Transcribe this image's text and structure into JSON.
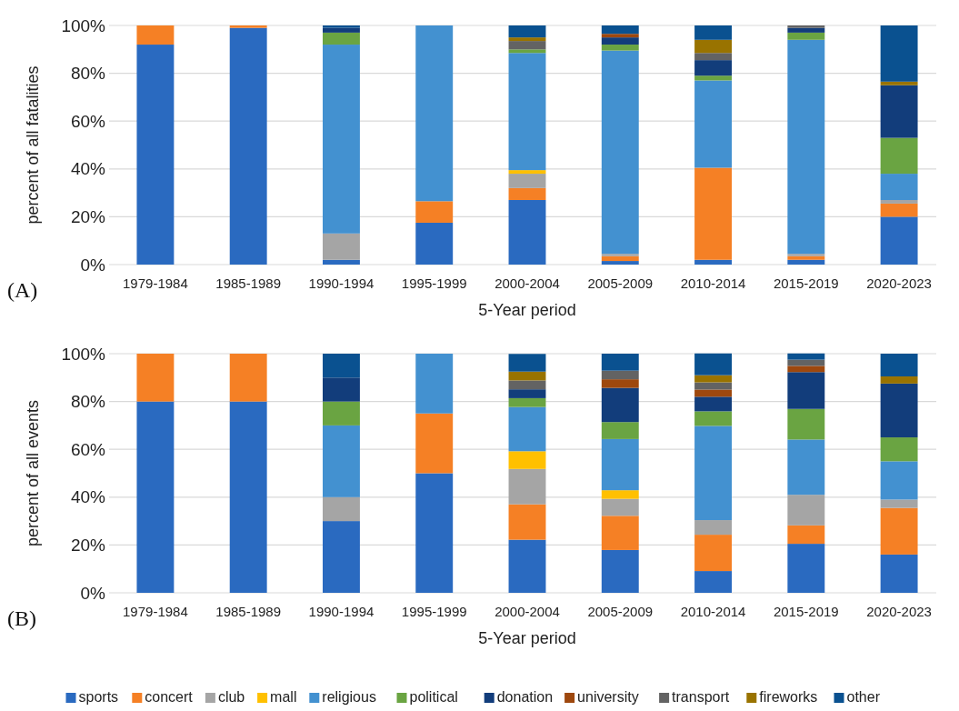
{
  "chart_data": [
    {
      "type": "bar",
      "stacked": true,
      "ylabel": "percent of all fatalities",
      "xlabel": "5-Year period",
      "annotations": [
        "(A)"
      ],
      "categories": [
        "1979-1984",
        "1985-1989",
        "1990-1994",
        "1995-1999",
        "2000-2004",
        "2005-2009",
        "2010-2014",
        "2015-2019",
        "2020-2023"
      ],
      "ylim": [
        0,
        100
      ],
      "yticks": [
        {
          "value": 0,
          "label": "0%"
        },
        {
          "value": 20,
          "label": "20%"
        },
        {
          "value": 40,
          "label": "40%"
        },
        {
          "value": 60,
          "label": "60%"
        },
        {
          "value": 80,
          "label": "80%"
        },
        {
          "value": 100,
          "label": "100%"
        }
      ],
      "grid": "y",
      "legend": false,
      "series": [
        {
          "color": "#2a6ac0",
          "values": [
            92,
            99,
            2,
            17.5,
            27,
            1.5,
            2,
            2,
            20
          ]
        },
        {
          "color": "#f58025",
          "values": [
            8,
            1,
            null,
            9,
            5,
            2,
            38.5,
            1.5,
            5.5
          ]
        },
        {
          "color": "#a5a5a5",
          "values": [
            null,
            null,
            11,
            null,
            6,
            1,
            null,
            1,
            1.5
          ]
        },
        {
          "color": "#ffc000",
          "values": [
            null,
            null,
            null,
            null,
            1.5,
            null,
            null,
            null,
            null
          ]
        },
        {
          "color": "#4391d0",
          "values": [
            null,
            null,
            79,
            73.5,
            49,
            85,
            36.5,
            89.5,
            11
          ]
        },
        {
          "color": "#6aa442",
          "values": [
            null,
            null,
            5,
            null,
            1.5,
            2.5,
            2,
            3,
            15
          ]
        },
        {
          "color": "#123d7b",
          "values": [
            null,
            null,
            2,
            null,
            null,
            3,
            6.5,
            2,
            22
          ]
        },
        {
          "color": "#9e480e",
          "values": [
            null,
            null,
            null,
            null,
            null,
            1.5,
            null,
            null,
            null
          ]
        },
        {
          "color": "#636363",
          "values": [
            null,
            null,
            null,
            null,
            3.5,
            null,
            3,
            1,
            null
          ]
        },
        {
          "color": "#997300",
          "values": [
            null,
            null,
            null,
            null,
            1.5,
            null,
            5.5,
            null,
            1.5
          ]
        },
        {
          "color": "#0a5190",
          "values": [
            null,
            null,
            1,
            null,
            5,
            3.5,
            6,
            null,
            23.5
          ]
        }
      ]
    },
    {
      "type": "bar",
      "stacked": true,
      "ylabel": "percent of all events",
      "xlabel": "5-Year period",
      "annotations": [
        "(B)"
      ],
      "categories": [
        "1979-1984",
        "1985-1989",
        "1990-1994",
        "1995-1999",
        "2000-2004",
        "2005-2009",
        "2010-2014",
        "2015-2019",
        "2020-2023"
      ],
      "ylim": [
        0,
        100
      ],
      "yticks": [
        {
          "value": 0,
          "label": "0%"
        },
        {
          "value": 20,
          "label": "20%"
        },
        {
          "value": 40,
          "label": "40%"
        },
        {
          "value": 60,
          "label": "60%"
        },
        {
          "value": 80,
          "label": "80%"
        },
        {
          "value": 100,
          "label": "100%"
        }
      ],
      "grid": "y",
      "legend": "bottom",
      "series": [
        {
          "name": "sports",
          "color": "#2a6ac0",
          "values": [
            80,
            80,
            30,
            50,
            22.2,
            17.9,
            9.1,
            20.5,
            16
          ]
        },
        {
          "name": "concert",
          "color": "#f58025",
          "values": [
            20,
            20,
            null,
            25,
            14.8,
            14.3,
            15.2,
            7.7,
            19.5
          ]
        },
        {
          "name": "club",
          "color": "#a5a5a5",
          "values": [
            null,
            null,
            10,
            null,
            14.8,
            7.1,
            6.1,
            12.8,
            3.5
          ]
        },
        {
          "name": "mall",
          "color": "#ffc000",
          "values": [
            null,
            null,
            null,
            null,
            7.4,
            3.6,
            null,
            null,
            null
          ]
        },
        {
          "name": "religious",
          "color": "#4391d0",
          "values": [
            null,
            null,
            30,
            25,
            18.5,
            21.4,
            39.4,
            23.1,
            16
          ]
        },
        {
          "name": "political",
          "color": "#6aa442",
          "values": [
            null,
            null,
            10,
            null,
            3.7,
            7.1,
            6.1,
            12.8,
            10
          ]
        },
        {
          "name": "donation",
          "color": "#123d7b",
          "values": [
            null,
            null,
            10,
            null,
            3.7,
            14.3,
            6.1,
            15.4,
            22.5
          ]
        },
        {
          "name": "university",
          "color": "#9e480e",
          "values": [
            null,
            null,
            null,
            null,
            null,
            3.6,
            3,
            2.6,
            null
          ]
        },
        {
          "name": "transport",
          "color": "#636363",
          "values": [
            null,
            null,
            null,
            null,
            3.7,
            3.6,
            3,
            2.6,
            null
          ]
        },
        {
          "name": "fireworks",
          "color": "#997300",
          "values": [
            null,
            null,
            null,
            null,
            3.7,
            null,
            3,
            null,
            3
          ]
        },
        {
          "name": "other",
          "color": "#0a5190",
          "values": [
            null,
            null,
            10,
            null,
            7.4,
            7.1,
            9.1,
            2.6,
            9.5
          ]
        }
      ]
    }
  ]
}
